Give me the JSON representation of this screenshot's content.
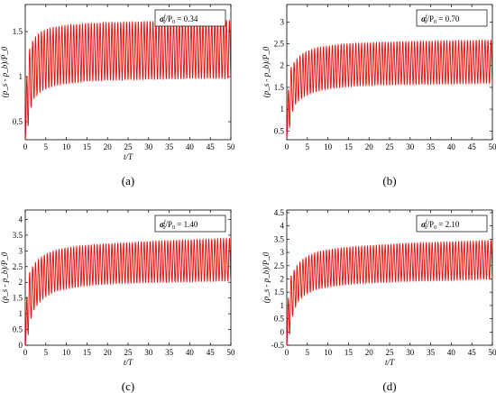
{
  "chart_data": [
    {
      "type": "line",
      "panel_label": "(a)",
      "annotation": {
        "sym": "σ",
        "sup": "f",
        "sub": "0",
        "mid": "/P",
        "sub2": "0",
        "value": " = 0.34"
      },
      "ylabel": "(p_s - p_b)/P_0",
      "xlabel": "t/T",
      "xlim": [
        0,
        50
      ],
      "ylim": [
        0.3,
        1.8
      ],
      "xticks": [
        0,
        5,
        10,
        15,
        20,
        25,
        30,
        35,
        40,
        45,
        50
      ],
      "yticks": [
        0.5,
        1,
        1.5
      ],
      "series": [
        {
          "color": "#ff0000",
          "cycles_per_unit_x": 1.4,
          "x": [
            0,
            0.5,
            1,
            2,
            3,
            4,
            5,
            7,
            10,
            15,
            20,
            30,
            40,
            50
          ],
          "upper": [
            0.5,
            1.15,
            1.3,
            1.42,
            1.47,
            1.5,
            1.52,
            1.55,
            1.57,
            1.59,
            1.6,
            1.61,
            1.61,
            1.62
          ],
          "lower": [
            0.3,
            0.35,
            0.6,
            0.75,
            0.8,
            0.84,
            0.86,
            0.9,
            0.92,
            0.95,
            0.96,
            0.97,
            0.98,
            0.98
          ]
        }
      ]
    },
    {
      "type": "line",
      "panel_label": "(b)",
      "annotation": {
        "sym": "σ",
        "sup": "f",
        "sub": "0",
        "mid": "/P",
        "sub2": "0",
        "value": " = 0.70"
      },
      "ylabel": "(p_s - p_b)/P_0",
      "xlabel": "",
      "xlim": [
        0,
        50
      ],
      "ylim": [
        0.3,
        3.4
      ],
      "xticks": [
        0,
        5,
        10,
        15,
        20,
        25,
        30,
        35,
        40,
        45,
        50
      ],
      "yticks": [
        0.5,
        1,
        1.5,
        2,
        2.5,
        3
      ],
      "series": [
        {
          "color": "#ff0000",
          "cycles_per_unit_x": 1.4,
          "x": [
            0,
            0.5,
            1,
            2,
            3,
            4,
            5,
            7,
            10,
            15,
            20,
            30,
            40,
            50
          ],
          "upper": [
            0.6,
            1.7,
            1.95,
            2.1,
            2.2,
            2.28,
            2.33,
            2.4,
            2.45,
            2.5,
            2.52,
            2.55,
            2.57,
            2.58
          ],
          "lower": [
            0.35,
            0.4,
            0.85,
            1.1,
            1.2,
            1.28,
            1.33,
            1.4,
            1.47,
            1.52,
            1.55,
            1.57,
            1.58,
            1.6
          ]
        }
      ]
    },
    {
      "type": "line",
      "panel_label": "(c)",
      "annotation": {
        "sym": "σ",
        "sup": "f",
        "sub": "0",
        "mid": "/P",
        "sub2": "0",
        "value": " = 1.40"
      },
      "ylabel": "(p_s - p_b)/P_0",
      "xlabel": "t/T",
      "xlim": [
        0,
        50
      ],
      "ylim": [
        0,
        4.3
      ],
      "xticks": [
        0,
        5,
        10,
        15,
        20,
        25,
        30,
        35,
        40,
        45,
        50
      ],
      "yticks": [
        0,
        0.5,
        1,
        1.5,
        2,
        2.5,
        3,
        3.5,
        4
      ],
      "series": [
        {
          "color": "#ff0000",
          "cycles_per_unit_x": 1.4,
          "x": [
            0,
            0.5,
            1,
            2,
            3,
            4,
            5,
            7,
            10,
            15,
            20,
            30,
            40,
            50
          ],
          "upper": [
            0.3,
            1.9,
            2.3,
            2.55,
            2.7,
            2.8,
            2.9,
            3.0,
            3.1,
            3.18,
            3.22,
            3.3,
            3.35,
            3.4
          ],
          "lower": [
            0.0,
            0.1,
            0.7,
            1.1,
            1.3,
            1.45,
            1.55,
            1.7,
            1.8,
            1.9,
            1.95,
            2.0,
            2.02,
            2.05
          ]
        }
      ]
    },
    {
      "type": "line",
      "panel_label": "(d)",
      "annotation": {
        "sym": "σ",
        "sup": "f",
        "sub": "0",
        "mid": "/P",
        "sub2": "0",
        "value": " = 2.10"
      },
      "ylabel": "(p_s - p_b)/P_0",
      "xlabel": "t/T",
      "xlim": [
        0,
        50
      ],
      "ylim": [
        -0.5,
        4.6
      ],
      "xticks": [
        0,
        5,
        10,
        15,
        20,
        25,
        30,
        35,
        40,
        45,
        50
      ],
      "yticks": [
        -0.5,
        0,
        0.5,
        1,
        1.5,
        2,
        2.5,
        3,
        3.5,
        4,
        4.5
      ],
      "series": [
        {
          "color": "#ff0000",
          "cycles_per_unit_x": 1.4,
          "x": [
            0,
            0.5,
            1,
            2,
            3,
            4,
            5,
            7,
            10,
            15,
            20,
            30,
            40,
            50
          ],
          "upper": [
            0.2,
            1.6,
            2.1,
            2.4,
            2.6,
            2.75,
            2.85,
            3.0,
            3.1,
            3.2,
            3.25,
            3.35,
            3.4,
            3.45
          ],
          "lower": [
            -0.5,
            -0.4,
            0.4,
            0.9,
            1.2,
            1.35,
            1.45,
            1.6,
            1.7,
            1.8,
            1.85,
            1.92,
            1.95,
            2.0
          ]
        }
      ]
    }
  ]
}
